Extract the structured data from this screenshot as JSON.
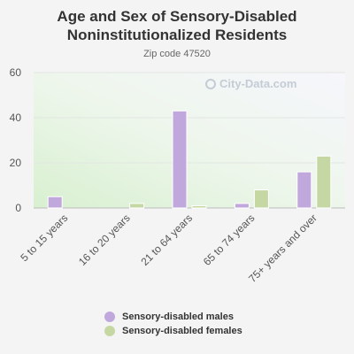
{
  "title": "Age and Sex of Sensory-Disabled Noninstitutionalized Residents",
  "subtitle": "Zip code 47520",
  "watermark": "City-Data.com",
  "colors": {
    "males": "#c0a8dc",
    "females": "#c5d8a4"
  },
  "chart_data": {
    "type": "bar",
    "categories": [
      "5 to 15 years",
      "16 to 20 years",
      "21 to 64 years",
      "65 to 74 years",
      "75+ years and over"
    ],
    "series": [
      {
        "name": "Sensory-disabled males",
        "values": [
          5,
          0,
          43,
          2,
          16
        ]
      },
      {
        "name": "Sensory-disabled females",
        "values": [
          0,
          2,
          1,
          8,
          23
        ]
      }
    ],
    "yticks": [
      0,
      20,
      40,
      60
    ],
    "ylim": [
      0,
      60
    ],
    "legend": "bottom"
  }
}
